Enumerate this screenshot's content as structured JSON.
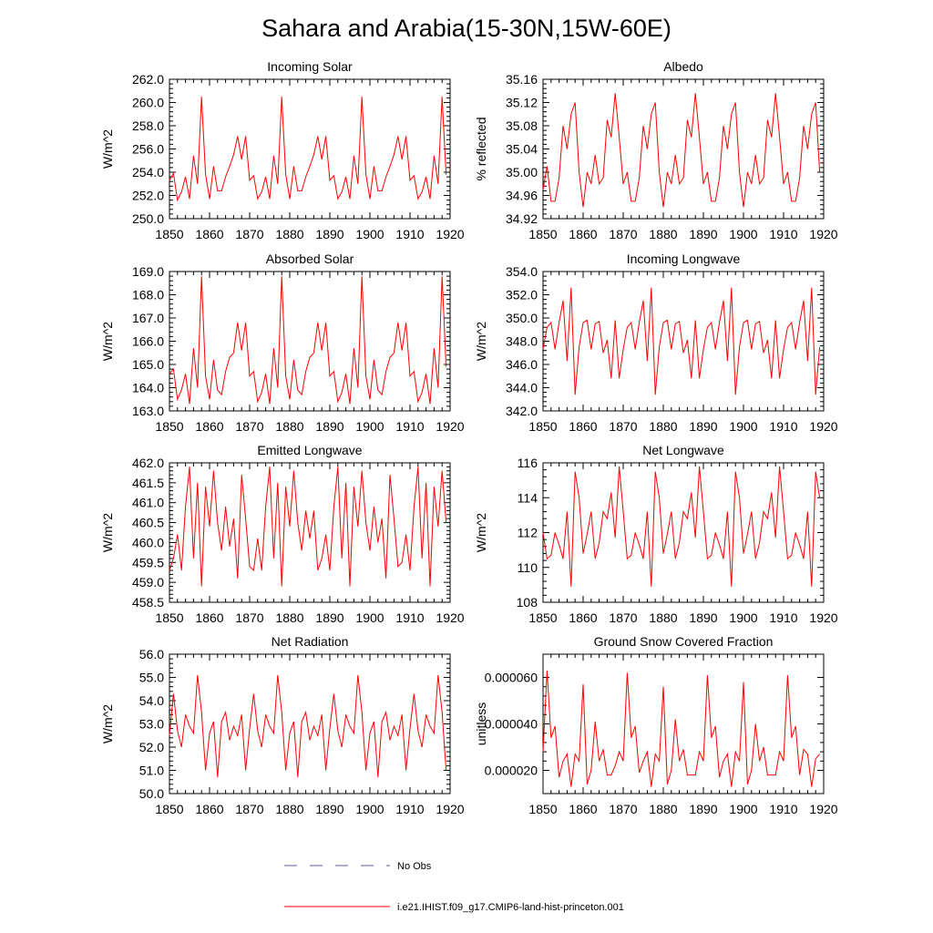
{
  "title": "Sahara and Arabia(15-30N,15W-60E)",
  "colors": {
    "model": "#ff0000",
    "obs": "#5a5aa8"
  },
  "legend": {
    "obs_label": "No Obs",
    "model_label": "i.e21.IHIST.f09_g17.CMIP6-land-hist-princeton.001"
  },
  "chart_data": [
    {
      "type": "line",
      "title": "Incoming Solar",
      "ylabel": "W/m^2",
      "xlim": [
        1850,
        1920
      ],
      "ylim": [
        250.0,
        262.0
      ],
      "xticks": [
        1850,
        1860,
        1870,
        1880,
        1890,
        1900,
        1910,
        1920
      ],
      "yticks": [
        "250.0",
        "252.0",
        "254.0",
        "256.0",
        "258.0",
        "260.0",
        "262.0"
      ],
      "x_start": 1850,
      "series": [
        {
          "values": [
            253.3,
            253.9,
            251.6,
            252.3,
            253.6,
            251.7,
            255.4,
            253.0,
            260.5,
            253.8,
            251.7,
            254.5,
            252.4,
            252.4,
            253.6,
            254.5,
            255.5,
            257.1,
            255.1,
            257.1,
            253.3,
            253.7,
            251.7,
            252.3,
            253.6,
            251.7,
            255.4,
            253.0,
            260.5,
            253.8,
            251.7,
            254.5,
            252.4,
            252.4,
            253.6,
            254.5,
            255.5,
            257.1,
            255.1,
            257.1,
            253.3,
            253.7,
            251.7,
            252.3,
            253.6,
            251.7,
            255.4,
            253.0,
            260.5,
            253.8,
            251.7,
            254.5,
            252.4,
            252.4,
            253.6,
            254.5,
            255.5,
            257.1,
            255.1,
            257.1,
            253.3,
            253.7,
            251.7,
            252.3,
            253.6,
            251.7,
            255.4,
            253.0,
            260.5,
            253.8
          ]
        }
      ]
    },
    {
      "type": "line",
      "title": "Albedo",
      "ylabel": "% reflected",
      "xlim": [
        1850,
        1920
      ],
      "ylim": [
        34.92,
        35.16
      ],
      "xticks": [
        1850,
        1860,
        1870,
        1880,
        1890,
        1900,
        1910,
        1920
      ],
      "yticks": [
        "34.92",
        "34.96",
        "35.00",
        "35.04",
        "35.08",
        "35.12",
        "35.16"
      ],
      "x_start": 1850,
      "series": [
        {
          "values": [
            34.97,
            35.01,
            34.95,
            34.95,
            34.99,
            35.08,
            35.04,
            35.1,
            35.12,
            35.0,
            34.94,
            35.0,
            34.98,
            35.03,
            34.98,
            34.99,
            35.09,
            35.06,
            35.136,
            35.06,
            34.98,
            35.0,
            34.95,
            34.95,
            34.99,
            35.08,
            35.04,
            35.1,
            35.12,
            35.0,
            34.94,
            35.0,
            34.98,
            35.03,
            34.98,
            34.99,
            35.09,
            35.06,
            35.136,
            35.06,
            34.98,
            35.0,
            34.95,
            34.95,
            34.99,
            35.08,
            35.04,
            35.1,
            35.12,
            35.0,
            34.94,
            35.0,
            34.98,
            35.03,
            34.98,
            34.99,
            35.09,
            35.06,
            35.136,
            35.06,
            34.98,
            35.0,
            34.95,
            34.95,
            34.99,
            35.08,
            35.04,
            35.1,
            35.12,
            35.0
          ]
        }
      ]
    },
    {
      "type": "line",
      "title": "Absorbed Solar",
      "ylabel": "W/m^2",
      "xlim": [
        1850,
        1920
      ],
      "ylim": [
        163.0,
        169.0
      ],
      "xticks": [
        1850,
        1860,
        1870,
        1880,
        1890,
        1900,
        1910,
        1920
      ],
      "yticks": [
        "163.0",
        "164.0",
        "165.0",
        "166.0",
        "167.0",
        "168.0",
        "169.0"
      ],
      "x_start": 1850,
      "series": [
        {
          "values": [
            164.6,
            164.8,
            163.5,
            163.9,
            164.6,
            163.3,
            165.7,
            164.0,
            168.8,
            164.5,
            163.5,
            165.2,
            163.9,
            163.7,
            164.7,
            165.3,
            165.5,
            166.8,
            165.6,
            166.8,
            164.5,
            164.7,
            163.4,
            163.8,
            164.6,
            163.3,
            165.7,
            164.0,
            168.8,
            164.5,
            163.5,
            165.2,
            163.9,
            163.7,
            164.7,
            165.3,
            165.5,
            166.8,
            165.6,
            166.8,
            164.5,
            164.7,
            163.4,
            163.8,
            164.6,
            163.3,
            165.7,
            164.0,
            168.8,
            164.5,
            163.5,
            165.2,
            163.9,
            163.7,
            164.7,
            165.3,
            165.5,
            166.8,
            165.6,
            166.8,
            164.5,
            164.7,
            163.4,
            163.8,
            164.6,
            163.3,
            165.7,
            164.0,
            168.8,
            164.9
          ]
        }
      ]
    },
    {
      "type": "line",
      "title": "Incoming Longwave",
      "ylabel": "W/m^2",
      "xlim": [
        1850,
        1920
      ],
      "ylim": [
        342.0,
        354.0
      ],
      "xticks": [
        1850,
        1860,
        1870,
        1880,
        1890,
        1900,
        1910,
        1920
      ],
      "yticks": [
        "342.0",
        "344.0",
        "346.0",
        "348.0",
        "350.0",
        "352.0",
        "354.0"
      ],
      "x_start": 1850,
      "series": [
        {
          "values": [
            347.3,
            349.2,
            349.6,
            347.3,
            349.6,
            351.5,
            346.3,
            352.6,
            343.4,
            347.5,
            349.6,
            349.8,
            347.3,
            349.5,
            349.7,
            347.0,
            348.1,
            344.8,
            349.8,
            344.8,
            347.3,
            349.2,
            349.6,
            347.3,
            349.6,
            351.5,
            346.3,
            352.6,
            343.4,
            347.5,
            349.6,
            349.8,
            347.3,
            349.5,
            349.7,
            347.0,
            348.1,
            344.8,
            349.8,
            344.8,
            347.3,
            349.2,
            349.6,
            347.3,
            349.6,
            351.5,
            346.3,
            352.6,
            343.4,
            347.5,
            349.6,
            349.8,
            347.3,
            349.5,
            349.7,
            347.0,
            348.1,
            344.8,
            349.8,
            344.8,
            347.3,
            349.2,
            349.6,
            347.3,
            349.6,
            351.5,
            346.3,
            352.6,
            343.4,
            347.5
          ]
        }
      ]
    },
    {
      "type": "line",
      "title": "Emitted Longwave",
      "ylabel": "W/m^2",
      "xlim": [
        1850,
        1920
      ],
      "ylim": [
        458.5,
        462.0
      ],
      "xticks": [
        1850,
        1860,
        1870,
        1880,
        1890,
        1900,
        1910,
        1920
      ],
      "yticks": [
        "458.5",
        "459.0",
        "459.5",
        "460.0",
        "460.5",
        "461.0",
        "461.5",
        "462.0"
      ],
      "x_start": 1850,
      "series": [
        {
          "values": [
            459.3,
            459.6,
            460.2,
            459.3,
            460.9,
            461.9,
            459.6,
            461.5,
            458.9,
            461.4,
            460.4,
            461.8,
            460.5,
            459.8,
            460.9,
            459.9,
            460.6,
            459.1,
            461.7,
            460.6,
            459.4,
            459.3,
            460.1,
            459.3,
            460.9,
            461.9,
            459.6,
            461.5,
            458.9,
            461.4,
            460.4,
            461.8,
            460.5,
            459.8,
            460.8,
            460.1,
            460.8,
            459.3,
            459.6,
            460.2,
            459.3,
            460.9,
            461.9,
            459.6,
            461.5,
            458.9,
            461.4,
            460.4,
            461.8,
            460.5,
            459.8,
            460.9,
            460.0,
            460.6,
            459.1,
            461.7,
            460.6,
            459.4,
            459.5,
            460.2,
            459.3,
            460.9,
            461.9,
            459.6,
            461.5,
            458.9,
            461.4,
            460.4,
            461.8,
            460.5
          ]
        }
      ]
    },
    {
      "type": "line",
      "title": "Net Longwave",
      "ylabel": "W/m^2",
      "xlim": [
        1850,
        1920
      ],
      "ylim": [
        108,
        116
      ],
      "xticks": [
        1850,
        1860,
        1870,
        1880,
        1890,
        1900,
        1910,
        1920
      ],
      "yticks": [
        "108",
        "110",
        "112",
        "114",
        "116"
      ],
      "x_start": 1850,
      "series": [
        {
          "values": [
            112.0,
            110.5,
            110.7,
            112.0,
            111.3,
            110.5,
            113.2,
            108.9,
            115.5,
            114.0,
            110.8,
            111.9,
            113.2,
            110.5,
            111.4,
            113.2,
            112.8,
            114.3,
            111.7,
            115.8,
            113.2,
            110.5,
            110.7,
            112.0,
            111.3,
            110.5,
            113.2,
            108.9,
            115.5,
            114.0,
            110.8,
            111.9,
            113.2,
            110.5,
            111.4,
            113.2,
            112.8,
            114.3,
            111.7,
            115.8,
            113.2,
            110.5,
            110.7,
            112.0,
            111.3,
            110.5,
            113.2,
            108.9,
            115.5,
            114.0,
            110.8,
            111.9,
            113.2,
            110.5,
            111.4,
            113.2,
            112.8,
            114.3,
            111.7,
            115.8,
            113.2,
            110.5,
            110.7,
            112.0,
            111.3,
            110.5,
            113.2,
            108.9,
            115.5,
            114.0
          ]
        }
      ]
    },
    {
      "type": "line",
      "title": "Net Radiation",
      "ylabel": "W/m^2",
      "xlim": [
        1850,
        1920
      ],
      "ylim": [
        50.0,
        56.0
      ],
      "xticks": [
        1850,
        1860,
        1870,
        1880,
        1890,
        1900,
        1910,
        1920
      ],
      "yticks": [
        "50.0",
        "51.0",
        "52.0",
        "53.0",
        "54.0",
        "55.0",
        "56.0"
      ],
      "x_start": 1850,
      "series": [
        {
          "values": [
            52.5,
            54.3,
            52.7,
            52.0,
            53.4,
            52.9,
            52.6,
            55.1,
            53.5,
            51.0,
            52.6,
            53.1,
            50.7,
            53.1,
            53.5,
            52.3,
            52.9,
            52.5,
            53.4,
            51.0,
            52.8,
            54.3,
            52.7,
            52.0,
            53.4,
            52.9,
            52.6,
            55.1,
            53.5,
            51.0,
            52.6,
            53.1,
            50.7,
            53.1,
            53.5,
            52.3,
            52.9,
            52.5,
            53.4,
            51.0,
            52.8,
            54.3,
            52.7,
            52.0,
            53.4,
            52.9,
            52.6,
            55.1,
            53.5,
            51.0,
            52.6,
            53.1,
            50.7,
            53.1,
            53.5,
            52.3,
            52.9,
            52.5,
            53.4,
            51.0,
            52.8,
            54.3,
            52.7,
            52.0,
            53.4,
            52.9,
            52.6,
            55.1,
            53.5,
            51.0
          ]
        }
      ]
    },
    {
      "type": "line",
      "title": "Ground Snow Covered Fraction",
      "ylabel": "unitless",
      "xlim": [
        1850,
        1920
      ],
      "ylim": [
        1e-05,
        7e-05
      ],
      "xticks": [
        1850,
        1860,
        1870,
        1880,
        1890,
        1900,
        1910,
        1920
      ],
      "yticks": [
        "0.000020",
        "0.000040",
        "0.000060"
      ],
      "ytick_values": [
        2e-05,
        4e-05,
        6e-05
      ],
      "x_start": 1850,
      "series": [
        {
          "values": [
            2.8e-05,
            6.3e-05,
            3.4e-05,
            3.9e-05,
            1.7e-05,
            2.4e-05,
            2.7e-05,
            1.3e-05,
            2.7e-05,
            2.4e-05,
            5.7e-05,
            1.4e-05,
            2e-05,
            4.1e-05,
            2.4e-05,
            2.9e-05,
            1.8e-05,
            1.8e-05,
            2.2e-05,
            2.8e-05,
            2.4e-05,
            6.2e-05,
            3.4e-05,
            3.9e-05,
            1.9e-05,
            2.4e-05,
            2.8e-05,
            1.3e-05,
            2.7e-05,
            2.4e-05,
            5.6e-05,
            1.4e-05,
            2e-05,
            4.2e-05,
            2.4e-05,
            2.9e-05,
            1.8e-05,
            1.8e-05,
            1.8e-05,
            2.8e-05,
            2.4e-05,
            6.1e-05,
            3.4e-05,
            3.9e-05,
            1.7e-05,
            2.4e-05,
            2.7e-05,
            1.3e-05,
            2.8e-05,
            2.4e-05,
            5.8e-05,
            1.4e-05,
            2e-05,
            4e-05,
            2.4e-05,
            3e-05,
            1.8e-05,
            1.8e-05,
            1.8e-05,
            2.8e-05,
            2.4e-05,
            6.1e-05,
            3.4e-05,
            3.9e-05,
            1.8e-05,
            2.9e-05,
            2.7e-05,
            1.3e-05,
            2.5e-05,
            2.7e-05
          ]
        }
      ]
    }
  ]
}
